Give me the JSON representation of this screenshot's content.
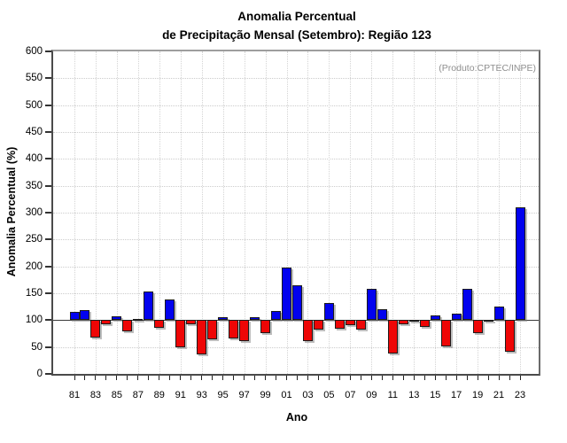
{
  "title": {
    "line1": "Anomalia Percentual",
    "line2": "de Precipitação Mensal (Setembro): Região 123"
  },
  "annotation": "(Produto:CPTEC/INPE)",
  "chart_data": {
    "type": "bar",
    "title": "Anomalia Percentual de Precipitação Mensal (Setembro): Região 123",
    "xlabel": "Ano",
    "ylabel": "Anomalia Percentual (%)",
    "ylim": [
      0,
      600
    ],
    "y_ticks": [
      0,
      50,
      100,
      150,
      200,
      250,
      300,
      350,
      400,
      450,
      500,
      550,
      600
    ],
    "baseline": 100,
    "grid": true,
    "categories": [
      "81",
      "82",
      "83",
      "84",
      "85",
      "86",
      "87",
      "88",
      "89",
      "90",
      "91",
      "92",
      "93",
      "94",
      "95",
      "96",
      "97",
      "98",
      "99",
      "00",
      "01",
      "02",
      "03",
      "04",
      "05",
      "06",
      "07",
      "08",
      "09",
      "10",
      "11",
      "12",
      "13",
      "14",
      "15",
      "16",
      "17",
      "18",
      "19",
      "20",
      "21",
      "22",
      "23"
    ],
    "x_tick_labels": [
      "81",
      "83",
      "85",
      "87",
      "89",
      "91",
      "93",
      "95",
      "97",
      "99",
      "01",
      "03",
      "05",
      "07",
      "09",
      "11",
      "13",
      "15",
      "17",
      "19",
      "21",
      "23"
    ],
    "values": [
      116,
      118,
      68,
      92,
      107,
      79,
      102,
      154,
      85,
      138,
      50,
      92,
      37,
      64,
      106,
      66,
      61,
      105,
      75,
      117,
      198,
      165,
      61,
      82,
      132,
      84,
      91,
      83,
      158,
      120,
      38,
      92,
      97,
      88,
      108,
      51,
      112,
      158,
      76,
      97,
      125,
      42,
      310
    ],
    "colors": {
      "above_baseline": "#0202ee",
      "below_baseline": "#ee0606"
    }
  }
}
